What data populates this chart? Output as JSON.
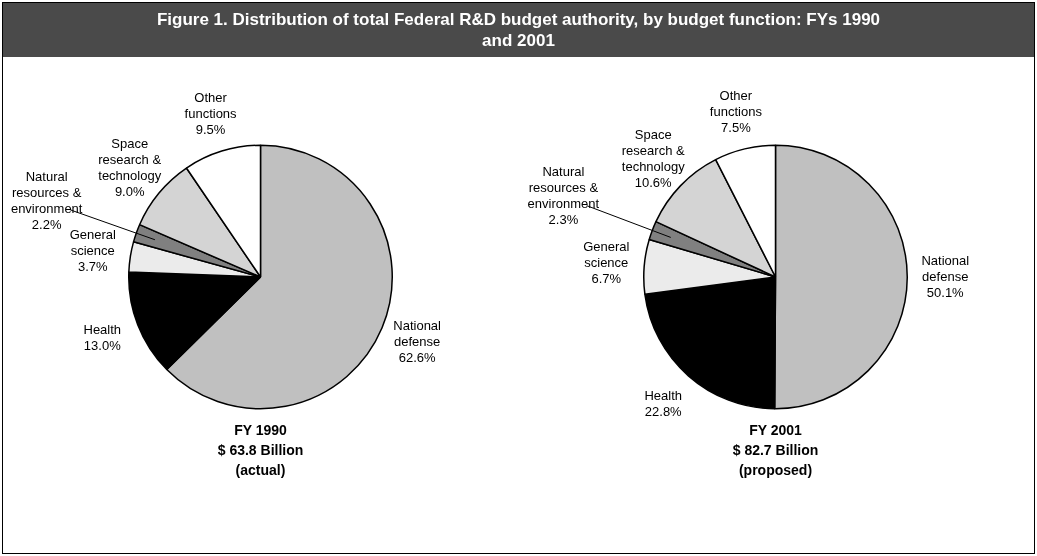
{
  "chart_data": [
    {
      "type": "pie",
      "title": "Figure 1.  Distribution of total Federal R&D budget authority, by budget function: FYs 1990 and 2001",
      "categories": [
        "National defense",
        "Health",
        "General science",
        "Natural resources & environment",
        "Space research & technology",
        "Other functions"
      ],
      "values": [
        62.6,
        13.0,
        3.7,
        2.2,
        9.0,
        9.5
      ],
      "colors": [
        "#c0c0c0",
        "#000000",
        "#ebebeb",
        "#808080",
        "#d4d4d4",
        "#ffffff"
      ],
      "value_labels": [
        "62.6%",
        "13.0%",
        "3.7%",
        "2.2%",
        "9.0%",
        "9.5%"
      ],
      "legend": false,
      "annotations": [
        "FY 1990",
        "$ 63.8 Billion",
        "(actual)"
      ]
    },
    {
      "type": "pie",
      "categories": [
        "National defense",
        "Health",
        "General science",
        "Natural resources & environment",
        "Space research & technology",
        "Other functions"
      ],
      "values": [
        50.1,
        22.8,
        6.7,
        2.3,
        10.6,
        7.5
      ],
      "colors": [
        "#c0c0c0",
        "#000000",
        "#ebebeb",
        "#808080",
        "#d4d4d4",
        "#ffffff"
      ],
      "value_labels": [
        "50.1%",
        "22.8%",
        "6.7%",
        "2.3%",
        "10.6%",
        "7.5%"
      ],
      "legend": false,
      "annotations": [
        "FY 2001",
        "$ 82.7 Billion",
        "(proposed)"
      ]
    }
  ]
}
